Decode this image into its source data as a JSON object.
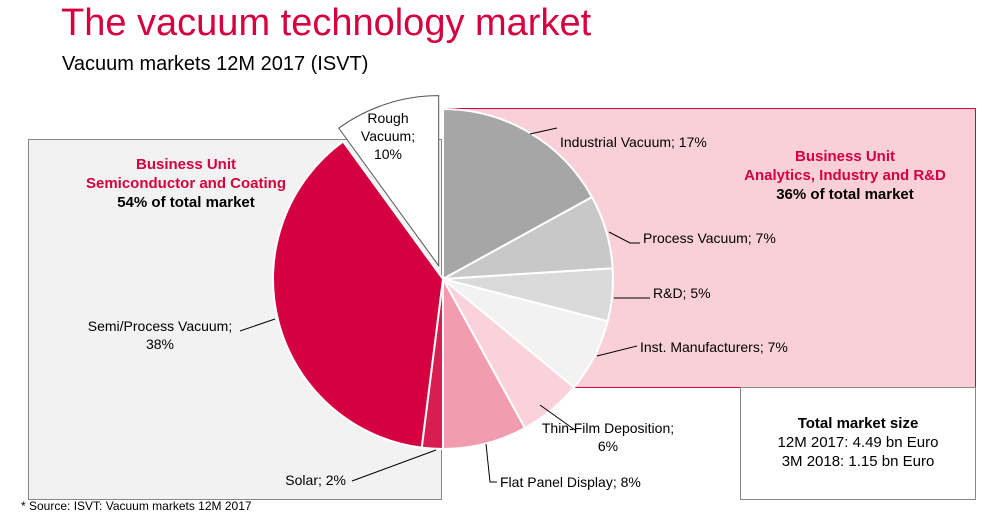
{
  "title": "The vacuum technology market",
  "subtitle": "Vacuum markets 12M 2017 (ISVT)",
  "business_units": {
    "left": {
      "line1": "Business Unit",
      "line2": "Semiconductor and Coating",
      "share": "54% of total market",
      "color": "#d40040"
    },
    "right": {
      "line1": "Business Unit",
      "line2": "Analytics, Industry and R&D",
      "share": "36% of total market",
      "color": "#d40040"
    }
  },
  "total_market": {
    "heading": "Total market size",
    "line1": "12M 2017: 4.49 bn Euro",
    "line2": "3M 2018: 1.15 bn Euro"
  },
  "source": "* Source: ISVT: Vacuum markets 12M 2017",
  "chart_data": {
    "type": "pie",
    "unit": "%",
    "slices": [
      {
        "name": "Industrial Vacuum",
        "value": 17,
        "label": [
          "Industrial Vacuum; 17%"
        ],
        "color": "#a6a6a6"
      },
      {
        "name": "Process Vacuum",
        "value": 7,
        "label": [
          "Process Vacuum; 7%"
        ],
        "color": "#c8c8c8"
      },
      {
        "name": "R&D",
        "value": 5,
        "label": [
          "R&D; 5%"
        ],
        "color": "#dadada"
      },
      {
        "name": "Inst. Manufacturers",
        "value": 7,
        "label": [
          "Inst. Manufacturers; 7%"
        ],
        "color": "#f2f2f2"
      },
      {
        "name": "Thin-Film Deposition",
        "value": 6,
        "label": [
          "Thin-Film Deposition;",
          "6%"
        ],
        "color": "#fad2dc"
      },
      {
        "name": "Flat Panel Display",
        "value": 8,
        "label": [
          "Flat Panel Display; 8%"
        ],
        "color": "#f29cb0"
      },
      {
        "name": "Solar",
        "value": 2,
        "label": [
          "Solar; 2%"
        ],
        "color": "#d81e50"
      },
      {
        "name": "Semi/Process Vacuum",
        "value": 38,
        "label": [
          "Semi/Process Vacuum;",
          "38%"
        ],
        "color": "#d40040"
      },
      {
        "name": "Rough Vacuum",
        "value": 10,
        "label": [
          "Rough",
          "Vacuum;",
          "10%"
        ],
        "color": "#ffffff",
        "exploded": true
      }
    ]
  }
}
